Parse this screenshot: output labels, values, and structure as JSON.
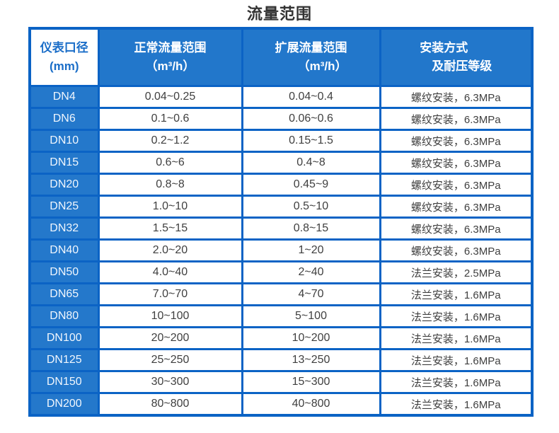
{
  "chart_data": {
    "type": "table",
    "title": "流量范围",
    "header": {
      "col1_line1": "仪表口径",
      "col1_line2": "(mm)",
      "col2_line1": "正常流量范围",
      "col2_line2": "（m³/h）",
      "col3_line1": "扩展流量范围",
      "col3_line2": "（m³/h）",
      "col4_line1": "安装方式",
      "col4_line2": "及耐压等级"
    },
    "columns": [
      "仪表口径 (mm)",
      "正常流量范围（m³/h）",
      "扩展流量范围（m³/h）",
      "安装方式及耐压等级"
    ],
    "rows": [
      [
        "DN4",
        "0.04~0.25",
        "0.04~0.4",
        "螺纹安装，6.3MPa"
      ],
      [
        "DN6",
        "0.1~0.6",
        "0.06~0.6",
        "螺纹安装，6.3MPa"
      ],
      [
        "DN10",
        "0.2~1.2",
        "0.15~1.5",
        "螺纹安装，6.3MPa"
      ],
      [
        "DN15",
        "0.6~6",
        "0.4~8",
        "螺纹安装，6.3MPa"
      ],
      [
        "DN20",
        "0.8~8",
        "0.45~9",
        "螺纹安装，6.3MPa"
      ],
      [
        "DN25",
        "1.0~10",
        "0.5~10",
        "螺纹安装，6.3MPa"
      ],
      [
        "DN32",
        "1.5~15",
        "0.8~15",
        "螺纹安装，6.3MPa"
      ],
      [
        "DN40",
        "2.0~20",
        "1~20",
        "螺纹安装，6.3MPa"
      ],
      [
        "DN50",
        "4.0~40",
        "2~40",
        "法兰安装，2.5MPa"
      ],
      [
        "DN65",
        "7.0~70",
        "4~70",
        "法兰安装，1.6MPa"
      ],
      [
        "DN80",
        "10~100",
        "5~100",
        "法兰安装，1.6MPa"
      ],
      [
        "DN100",
        "20~200",
        "10~200",
        "法兰安装，1.6MPa"
      ],
      [
        "DN125",
        "25~250",
        "13~250",
        "法兰安装，1.6MPa"
      ],
      [
        "DN150",
        "30~300",
        "15~300",
        "法兰安装，1.6MPa"
      ],
      [
        "DN200",
        "80~800",
        "40~800",
        "法兰安装，1.6MPa"
      ]
    ]
  },
  "colors": {
    "grid_blue": "#0b63c5",
    "header_blue": "#2277cb",
    "dn_cell_blue": "#2478cb",
    "corner_cell_text_blue": "#1b6ec8",
    "title_text": "#333333",
    "cell_text": "#3f3f3f"
  }
}
